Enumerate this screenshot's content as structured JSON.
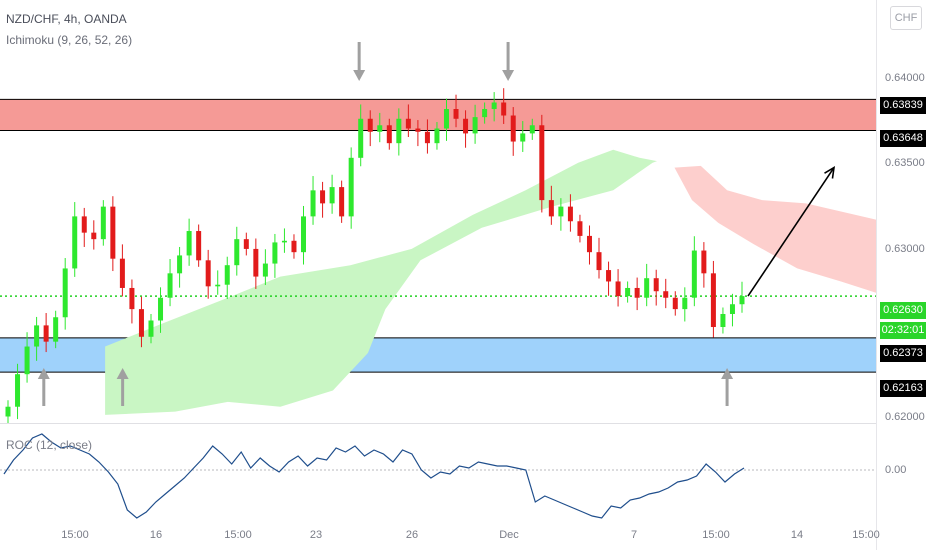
{
  "header": {
    "symbol_line": "NZD/CHF, 4h, OANDA",
    "indicator_line": "Ichimoku (9, 26, 52, 26)",
    "roc_line": "ROC (12, close)",
    "currency": "CHF"
  },
  "price_axis": {
    "ticks": [
      {
        "label": "0.64000",
        "value": 0.64
      },
      {
        "label": "0.63500",
        "value": 0.635
      },
      {
        "label": "0.63000",
        "value": 0.63
      },
      {
        "label": "0.62000",
        "value": 0.62
      }
    ],
    "roc_tick": "0.00"
  },
  "price_tags": {
    "zone_red_top": "0.63839",
    "zone_red_bottom": "0.63648",
    "current_price": "0.62630",
    "countdown": "02:32:01",
    "zone_blue_top": "0.62373",
    "zone_blue_bottom": "0.62163"
  },
  "time_axis": [
    {
      "label": "15:00",
      "pos": 0.5
    },
    {
      "label": "16",
      "pos": 0.74
    },
    {
      "label": "15:00",
      "pos": 1.0
    },
    {
      "label": "23",
      "pos": 1.25
    },
    {
      "label": "26",
      "pos": 1.6
    },
    {
      "label": "Dec",
      "pos": 1.95
    },
    {
      "label": "7",
      "pos": 2.43
    },
    {
      "label": "15:00",
      "pos": 2.78
    },
    {
      "label": "14",
      "pos": 3.08
    },
    {
      "label": "15:00",
      "pos": 3.38
    }
  ],
  "colors": {
    "up": "#2ee82e",
    "down": "#e21b1b",
    "resistance_zone": "#f59a96",
    "support_zone": "#9fd2fb",
    "cloud_bull": "#c9f6c4",
    "cloud_bear": "#fdcfcd",
    "roc_line": "#1f4e8c",
    "current_price_line": "#22d022",
    "arrow_marker": "#a0a0a0"
  },
  "chart_data": {
    "type": "candlestick",
    "price_range": [
      0.6185,
      0.6445
    ],
    "zones": [
      {
        "name": "resistance",
        "top": 0.63839,
        "bottom": 0.63648
      },
      {
        "name": "support",
        "top": 0.62373,
        "bottom": 0.62163
      }
    ],
    "current_price": 0.6263,
    "close_path": [
      0.6195,
      0.6215,
      0.6232,
      0.6245,
      0.6235,
      0.625,
      0.628,
      0.6312,
      0.6302,
      0.6298,
      0.6318,
      0.6286,
      0.6268,
      0.6255,
      0.6238,
      0.6248,
      0.6262,
      0.6277,
      0.6288,
      0.6303,
      0.6285,
      0.6269,
      0.627,
      0.6282,
      0.6298,
      0.6292,
      0.6275,
      0.6283,
      0.6296,
      0.6297,
      0.629,
      0.6312,
      0.6328,
      0.632,
      0.633,
      0.6312,
      0.6348,
      0.6372,
      0.6364,
      0.6368,
      0.6357,
      0.6372,
      0.6366,
      0.6364,
      0.6357,
      0.6366,
      0.6378,
      0.6372,
      0.6363,
      0.6373,
      0.6378,
      0.6382,
      0.6374,
      0.6358,
      0.6363,
      0.6368,
      0.6322,
      0.6312,
      0.6318,
      0.6309,
      0.63,
      0.629,
      0.6279,
      0.6272,
      0.6263,
      0.6268,
      0.6262,
      0.6274,
      0.6266,
      0.6262,
      0.6255,
      0.6262,
      0.6291,
      0.6277,
      0.6244,
      0.6252,
      0.6258,
      0.6263
    ],
    "cloud_bull_top": [
      [
        0.12,
        0.6232
      ],
      [
        0.18,
        0.6245
      ],
      [
        0.26,
        0.6262
      ],
      [
        0.32,
        0.6275
      ],
      [
        0.4,
        0.6282
      ],
      [
        0.47,
        0.6292
      ],
      [
        0.54,
        0.6313
      ],
      [
        0.6,
        0.6328
      ],
      [
        0.66,
        0.6345
      ],
      [
        0.7,
        0.6353
      ],
      [
        0.73,
        0.6348
      ],
      [
        0.75,
        0.6346
      ],
      [
        0.745,
        0.6345
      ]
    ],
    "cloud_bull_bottom": [
      [
        0.745,
        0.6345
      ],
      [
        0.7,
        0.6328
      ],
      [
        0.63,
        0.6318
      ],
      [
        0.55,
        0.6305
      ],
      [
        0.48,
        0.6285
      ],
      [
        0.44,
        0.6255
      ],
      [
        0.42,
        0.6228
      ],
      [
        0.38,
        0.6205
      ],
      [
        0.32,
        0.6195
      ],
      [
        0.26,
        0.6198
      ],
      [
        0.2,
        0.6192
      ],
      [
        0.12,
        0.619
      ]
    ],
    "cloud_bear_top": [
      [
        0.77,
        0.6342
      ],
      [
        0.8,
        0.6343
      ],
      [
        0.83,
        0.6328
      ],
      [
        0.87,
        0.6322
      ],
      [
        0.92,
        0.632
      ],
      [
        1.0,
        0.631
      ]
    ],
    "cloud_bear_bottom": [
      [
        1.0,
        0.6265
      ],
      [
        0.96,
        0.6272
      ],
      [
        0.91,
        0.628
      ],
      [
        0.86,
        0.6295
      ],
      [
        0.82,
        0.6308
      ],
      [
        0.79,
        0.6322
      ],
      [
        0.77,
        0.6342
      ]
    ],
    "projection_arrow": {
      "from": 0.6263,
      "to": 0.6342
    },
    "down_arrows_at": [
      0.41,
      0.58
    ],
    "up_arrows_at": [
      0.05,
      0.14,
      0.83
    ],
    "roc_path": [
      -0.1,
      0.25,
      0.5,
      0.8,
      0.9,
      0.7,
      0.55,
      0.6,
      0.5,
      0.4,
      0.2,
      -0.05,
      -0.35,
      -1.0,
      -1.2,
      -1.05,
      -0.8,
      -0.6,
      -0.4,
      -0.2,
      0.05,
      0.3,
      0.6,
      0.4,
      0.15,
      0.45,
      0.05,
      0.3,
      0.1,
      -0.05,
      0.2,
      0.35,
      0.1,
      0.3,
      0.25,
      0.55,
      0.45,
      0.6,
      0.35,
      0.5,
      0.4,
      0.2,
      0.5,
      0.4,
      0.0,
      -0.2,
      -0.05,
      -0.1,
      0.1,
      0.05,
      0.2,
      0.15,
      0.1,
      0.1,
      0.05,
      0.0,
      -0.8,
      -0.65,
      -0.75,
      -0.85,
      -0.95,
      -1.05,
      -1.15,
      -1.2,
      -0.9,
      -0.95,
      -0.75,
      -0.7,
      -0.6,
      -0.55,
      -0.45,
      -0.3,
      -0.25,
      -0.15,
      0.15,
      -0.05,
      -0.3,
      -0.1,
      0.05
    ]
  }
}
